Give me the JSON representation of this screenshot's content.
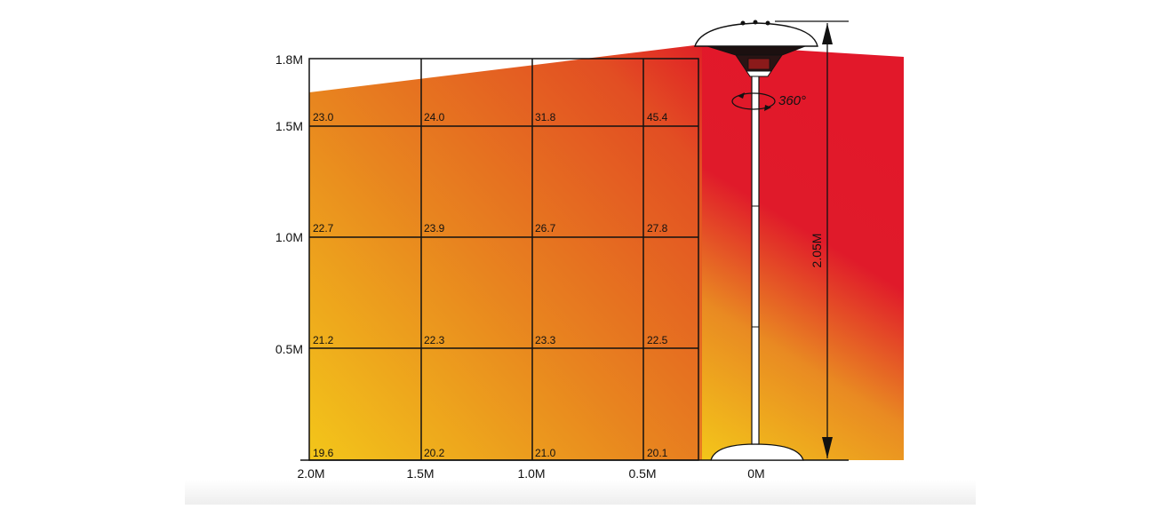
{
  "y_axis_labels": [
    "1.8M",
    "1.5M",
    "1.0M",
    "0.5M"
  ],
  "x_axis_labels": [
    "2.0M",
    "1.5M",
    "1.0M",
    "0.5M",
    "0M"
  ],
  "temperature_rows": [
    [
      "23.0",
      "24.0",
      "31.8",
      "45.4"
    ],
    [
      "22.7",
      "23.9",
      "26.7",
      "27.8"
    ],
    [
      "21.2",
      "22.3",
      "23.3",
      "22.5"
    ],
    [
      "19.6",
      "20.2",
      "21.0",
      "20.1"
    ]
  ],
  "height_label": "2.05M",
  "rotation_label": "360°",
  "colors": {
    "hot": "#e2182a",
    "mid": "#e8701f",
    "cool": "#f3c61a",
    "line": "#111111"
  }
}
